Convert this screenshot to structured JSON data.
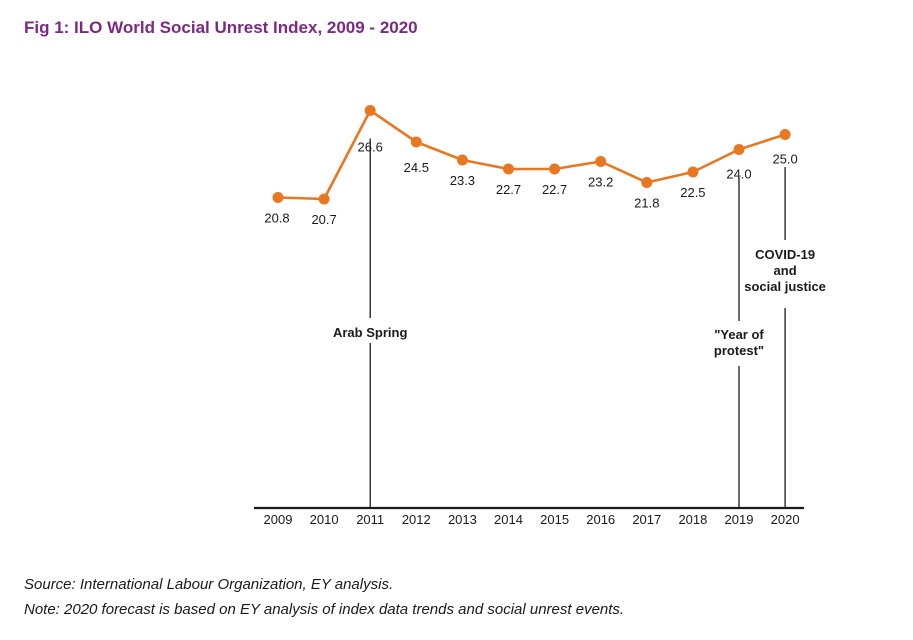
{
  "figure": {
    "title": "Fig 1: ILO World Social Unrest Index, 2009 - 2020",
    "source": "Source: International Labour Organization, EY analysis.",
    "note": "Note: 2020 forecast is based on EY analysis of index data trends and social unrest events."
  },
  "chart_data": {
    "type": "line",
    "title": "Fig 1: ILO World Social Unrest Index, 2009 - 2020",
    "xlabel": "",
    "ylabel": "",
    "categories": [
      "2009",
      "2010",
      "2011",
      "2012",
      "2013",
      "2014",
      "2015",
      "2016",
      "2017",
      "2018",
      "2019",
      "2020"
    ],
    "series": [
      {
        "values": [
          20.8,
          20.7,
          26.6,
          24.5,
          23.3,
          22.7,
          22.7,
          23.2,
          21.8,
          22.5,
          24.0,
          25.0
        ],
        "color": "#e87722"
      }
    ],
    "data_labels": [
      "20.8",
      "20.7",
      "26.6",
      "24.5",
      "23.3",
      "22.7",
      "22.7",
      "23.2",
      "21.8",
      "22.5",
      "24.0",
      "25.0"
    ],
    "annotations": [
      {
        "category": "2011",
        "lines": [
          "Arab Spring"
        ]
      },
      {
        "category": "2019",
        "lines": [
          "\"Year of",
          "protest\""
        ]
      },
      {
        "category": "2020",
        "lines": [
          "COVID-19",
          "and",
          "social justice"
        ]
      }
    ],
    "grid": false,
    "legend": "none"
  },
  "colors": {
    "line": "#e87722",
    "title": "#7b2a82",
    "text": "#1a1a1a",
    "axis": "#1a1a1a"
  }
}
